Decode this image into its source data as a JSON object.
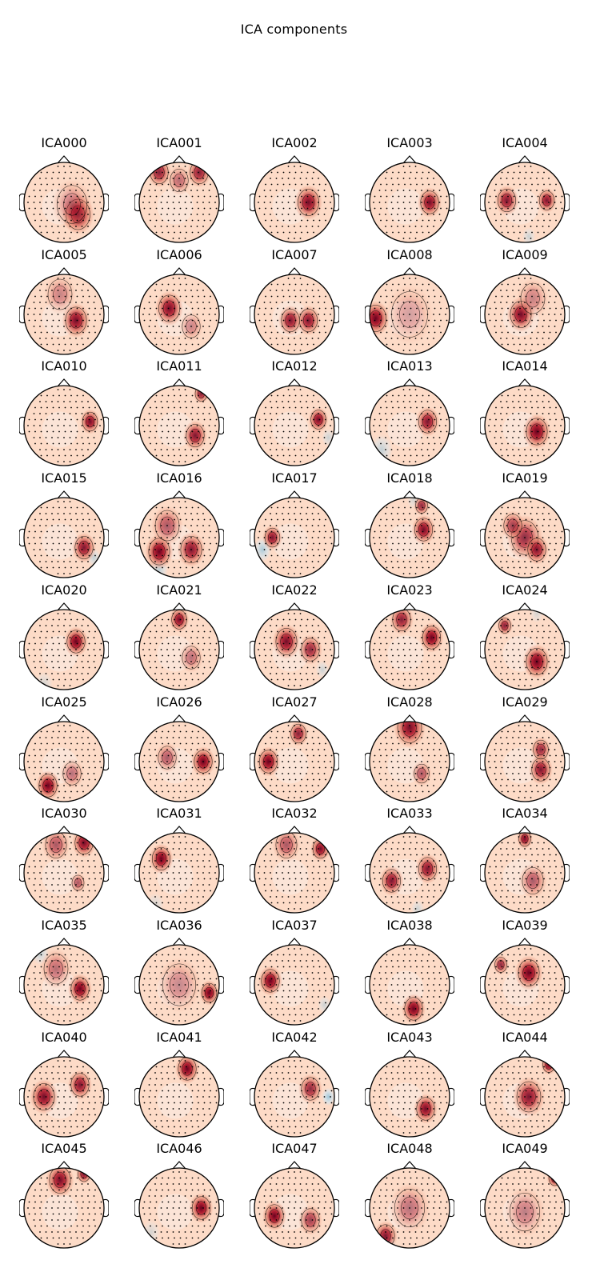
{
  "figure": {
    "title": "ICA components"
  },
  "components": [
    {
      "label": "ICA000",
      "blobs": [
        [
          0.35,
          0.3,
          0.4,
          0.95
        ],
        [
          0.2,
          0.05,
          0.5,
          0.45
        ]
      ],
      "blue": []
    },
    {
      "label": "ICA001",
      "blobs": [
        [
          -0.5,
          -0.75,
          0.3,
          0.85
        ],
        [
          0.5,
          -0.75,
          0.3,
          0.85
        ],
        [
          0,
          -0.55,
          0.3,
          0.5
        ]
      ],
      "blue": []
    },
    {
      "label": "ICA002",
      "blobs": [
        [
          0.35,
          0.0,
          0.35,
          0.95
        ]
      ],
      "blue": []
    },
    {
      "label": "ICA003",
      "blobs": [
        [
          0.5,
          0.0,
          0.3,
          0.95
        ]
      ],
      "blue": []
    },
    {
      "label": "ICA004",
      "blobs": [
        [
          -0.45,
          -0.05,
          0.3,
          0.9
        ],
        [
          0.55,
          -0.05,
          0.25,
          0.9
        ]
      ],
      "blue": [
        [
          0.1,
          0.85,
          0.15,
          0.5
        ]
      ]
    },
    {
      "label": "ICA005",
      "blobs": [
        [
          0.3,
          0.15,
          0.35,
          0.95
        ],
        [
          -0.1,
          -0.5,
          0.4,
          0.4
        ]
      ],
      "blue": []
    },
    {
      "label": "ICA006",
      "blobs": [
        [
          -0.25,
          -0.15,
          0.35,
          0.95
        ],
        [
          0.3,
          0.3,
          0.3,
          0.4
        ]
      ],
      "blue": []
    },
    {
      "label": "ICA007",
      "blobs": [
        [
          -0.1,
          0.15,
          0.3,
          0.9
        ],
        [
          0.35,
          0.15,
          0.3,
          0.9
        ]
      ],
      "blue": []
    },
    {
      "label": "ICA008",
      "blobs": [
        [
          -0.85,
          0.1,
          0.35,
          1.0
        ],
        [
          0,
          0,
          0.6,
          0.3
        ]
      ],
      "blue": []
    },
    {
      "label": "ICA009",
      "blobs": [
        [
          -0.1,
          0.0,
          0.35,
          0.95
        ],
        [
          0.2,
          -0.4,
          0.4,
          0.4
        ]
      ],
      "blue": []
    },
    {
      "label": "ICA010",
      "blobs": [
        [
          0.65,
          -0.1,
          0.25,
          0.95
        ]
      ],
      "blue": []
    },
    {
      "label": "ICA011",
      "blobs": [
        [
          0.4,
          0.25,
          0.3,
          0.9
        ],
        [
          0.55,
          -0.8,
          0.2,
          0.85
        ]
      ],
      "blue": []
    },
    {
      "label": "ICA012",
      "blobs": [
        [
          0.6,
          -0.15,
          0.25,
          0.95
        ]
      ],
      "blue": [
        [
          0.85,
          0.3,
          0.15,
          0.5
        ]
      ]
    },
    {
      "label": "ICA013",
      "blobs": [
        [
          0.45,
          -0.1,
          0.3,
          0.9
        ]
      ],
      "blue": [
        [
          -0.7,
          0.6,
          0.25,
          0.6
        ]
      ]
    },
    {
      "label": "ICA014",
      "blobs": [
        [
          0.3,
          0.15,
          0.35,
          1.0
        ]
      ],
      "blue": []
    },
    {
      "label": "ICA015",
      "blobs": [
        [
          0.5,
          0.25,
          0.3,
          0.9
        ]
      ],
      "blue": [
        [
          0.75,
          0.5,
          0.15,
          0.6
        ]
      ]
    },
    {
      "label": "ICA016",
      "blobs": [
        [
          -0.5,
          0.35,
          0.35,
          1.0
        ],
        [
          0.3,
          0.3,
          0.35,
          0.9
        ],
        [
          -0.3,
          -0.3,
          0.4,
          0.6
        ]
      ],
      "blue": [
        [
          -0.5,
          0.8,
          0.2,
          0.6
        ]
      ]
    },
    {
      "label": "ICA017",
      "blobs": [
        [
          -0.55,
          0.0,
          0.25,
          0.9
        ]
      ],
      "blue": [
        [
          -0.8,
          0.3,
          0.2,
          0.8
        ]
      ]
    },
    {
      "label": "ICA018",
      "blobs": [
        [
          0.35,
          -0.2,
          0.3,
          0.95
        ],
        [
          0.3,
          -0.8,
          0.2,
          0.8
        ]
      ],
      "blue": [
        [
          0.1,
          -0.95,
          0.15,
          0.4
        ]
      ]
    },
    {
      "label": "ICA019",
      "blobs": [
        [
          0,
          0,
          0.45,
          0.8
        ],
        [
          0.3,
          0.3,
          0.3,
          0.9
        ],
        [
          -0.3,
          -0.3,
          0.3,
          0.7
        ]
      ],
      "blue": []
    },
    {
      "label": "ICA020",
      "blobs": [
        [
          0.3,
          -0.2,
          0.3,
          1.0
        ]
      ],
      "blue": [
        [
          -0.5,
          0.85,
          0.2,
          0.4
        ]
      ]
    },
    {
      "label": "ICA021",
      "blobs": [
        [
          0,
          -0.75,
          0.25,
          0.95
        ],
        [
          0.3,
          0.2,
          0.3,
          0.5
        ]
      ],
      "blue": []
    },
    {
      "label": "ICA022",
      "blobs": [
        [
          -0.2,
          -0.2,
          0.35,
          0.95
        ],
        [
          0.4,
          0.0,
          0.3,
          0.8
        ]
      ],
      "blue": [
        [
          0.7,
          0.5,
          0.15,
          0.5
        ]
      ]
    },
    {
      "label": "ICA023",
      "blobs": [
        [
          0.55,
          -0.3,
          0.3,
          1.0
        ],
        [
          -0.2,
          -0.75,
          0.3,
          0.85
        ]
      ],
      "blue": []
    },
    {
      "label": "ICA024",
      "blobs": [
        [
          0.3,
          0.3,
          0.35,
          1.0
        ],
        [
          -0.5,
          -0.6,
          0.2,
          0.85
        ]
      ],
      "blue": [
        [
          0.3,
          -0.9,
          0.15,
          0.4
        ]
      ]
    },
    {
      "label": "ICA025",
      "blobs": [
        [
          -0.4,
          0.6,
          0.3,
          1.0
        ],
        [
          0.2,
          0.3,
          0.3,
          0.5
        ]
      ],
      "blue": []
    },
    {
      "label": "ICA026",
      "blobs": [
        [
          0.6,
          0.0,
          0.3,
          1.0
        ],
        [
          -0.3,
          -0.1,
          0.3,
          0.6
        ]
      ],
      "blue": []
    },
    {
      "label": "ICA027",
      "blobs": [
        [
          -0.65,
          0.0,
          0.3,
          1.0
        ],
        [
          0.1,
          -0.7,
          0.25,
          0.85
        ]
      ],
      "blue": []
    },
    {
      "label": "ICA028",
      "blobs": [
        [
          0,
          -0.85,
          0.4,
          0.95
        ],
        [
          0.3,
          0.3,
          0.25,
          0.6
        ]
      ],
      "blue": []
    },
    {
      "label": "ICA029",
      "blobs": [
        [
          0.4,
          0.2,
          0.3,
          0.9
        ],
        [
          0.4,
          -0.3,
          0.25,
          0.8
        ]
      ],
      "blue": []
    },
    {
      "label": "ICA030",
      "blobs": [
        [
          0.5,
          -0.75,
          0.3,
          0.95
        ],
        [
          -0.2,
          -0.7,
          0.35,
          0.6
        ],
        [
          0.35,
          0.25,
          0.2,
          0.6
        ]
      ],
      "blue": []
    },
    {
      "label": "ICA031",
      "blobs": [
        [
          -0.45,
          -0.35,
          0.3,
          1.0
        ]
      ],
      "blue": [
        [
          -0.6,
          0.8,
          0.2,
          0.4
        ]
      ]
    },
    {
      "label": "ICA032",
      "blobs": [
        [
          0.65,
          -0.6,
          0.25,
          0.95
        ],
        [
          -0.2,
          -0.7,
          0.35,
          0.6
        ]
      ],
      "blue": []
    },
    {
      "label": "ICA033",
      "blobs": [
        [
          -0.45,
          0.2,
          0.3,
          0.9
        ],
        [
          0.45,
          -0.1,
          0.3,
          0.9
        ]
      ],
      "blue": [
        [
          0.2,
          0.9,
          0.15,
          0.5
        ]
      ]
    },
    {
      "label": "ICA034",
      "blobs": [
        [
          0,
          -0.85,
          0.2,
          0.95
        ],
        [
          0.2,
          0.2,
          0.35,
          0.6
        ]
      ],
      "blue": []
    },
    {
      "label": "ICA035",
      "blobs": [
        [
          0.4,
          0.1,
          0.3,
          1.0
        ],
        [
          -0.2,
          -0.4,
          0.4,
          0.5
        ]
      ],
      "blue": [
        [
          -0.6,
          -0.8,
          0.2,
          0.6
        ]
      ]
    },
    {
      "label": "ICA036",
      "blobs": [
        [
          0.75,
          0.2,
          0.25,
          1.0
        ],
        [
          0,
          0,
          0.55,
          0.4
        ]
      ],
      "blue": []
    },
    {
      "label": "ICA037",
      "blobs": [
        [
          -0.6,
          -0.1,
          0.3,
          1.0
        ]
      ],
      "blue": [
        [
          0.75,
          0.5,
          0.15,
          0.5
        ]
      ]
    },
    {
      "label": "ICA038",
      "blobs": [
        [
          0.1,
          0.6,
          0.3,
          1.0
        ]
      ],
      "blue": []
    },
    {
      "label": "ICA039",
      "blobs": [
        [
          0.1,
          -0.3,
          0.35,
          1.0
        ],
        [
          -0.6,
          -0.5,
          0.2,
          0.8
        ]
      ],
      "blue": []
    },
    {
      "label": "ICA040",
      "blobs": [
        [
          -0.5,
          0.0,
          0.35,
          0.95
        ],
        [
          0.4,
          -0.3,
          0.3,
          0.9
        ]
      ],
      "blue": []
    },
    {
      "label": "ICA041",
      "blobs": [
        [
          0.2,
          -0.7,
          0.3,
          1.0
        ]
      ],
      "blue": []
    },
    {
      "label": "ICA042",
      "blobs": [
        [
          0.4,
          -0.2,
          0.3,
          0.8
        ]
      ],
      "blue": [
        [
          0.85,
          0.0,
          0.15,
          0.9
        ]
      ]
    },
    {
      "label": "ICA043",
      "blobs": [
        [
          0.4,
          0.3,
          0.3,
          0.95
        ]
      ],
      "blue": []
    },
    {
      "label": "ICA044",
      "blobs": [
        [
          0.1,
          0.0,
          0.4,
          0.9
        ],
        [
          0.6,
          -0.8,
          0.2,
          0.95
        ]
      ],
      "blue": []
    },
    {
      "label": "ICA045",
      "blobs": [
        [
          -0.1,
          -0.7,
          0.35,
          0.95
        ],
        [
          0.5,
          -0.85,
          0.2,
          0.9
        ]
      ],
      "blue": []
    },
    {
      "label": "ICA046",
      "blobs": [
        [
          0.55,
          0.0,
          0.3,
          1.0
        ]
      ],
      "blue": [
        [
          -0.7,
          0.6,
          0.2,
          0.4
        ]
      ]
    },
    {
      "label": "ICA047",
      "blobs": [
        [
          -0.5,
          0.2,
          0.3,
          1.0
        ],
        [
          0.4,
          0.3,
          0.3,
          0.7
        ]
      ],
      "blue": []
    },
    {
      "label": "ICA048",
      "blobs": [
        [
          -0.6,
          0.7,
          0.3,
          0.9
        ],
        [
          0,
          0,
          0.5,
          0.5
        ]
      ],
      "blue": [
        [
          -0.5,
          0.9,
          0.15,
          0.5
        ]
      ]
    },
    {
      "label": "ICA049",
      "blobs": [
        [
          0.75,
          -0.75,
          0.2,
          1.0
        ],
        [
          0,
          0.1,
          0.5,
          0.45
        ]
      ],
      "blue": []
    }
  ],
  "colors": {
    "max_positive": "#67001f",
    "strong_positive": "#b2182b",
    "mid_positive": "#e58368",
    "light_positive": "#fddbc7",
    "neutral": "#f7f7f7",
    "light_negative": "#d1e5f0",
    "mid_negative": "#92c5de",
    "outline": "#000000"
  }
}
